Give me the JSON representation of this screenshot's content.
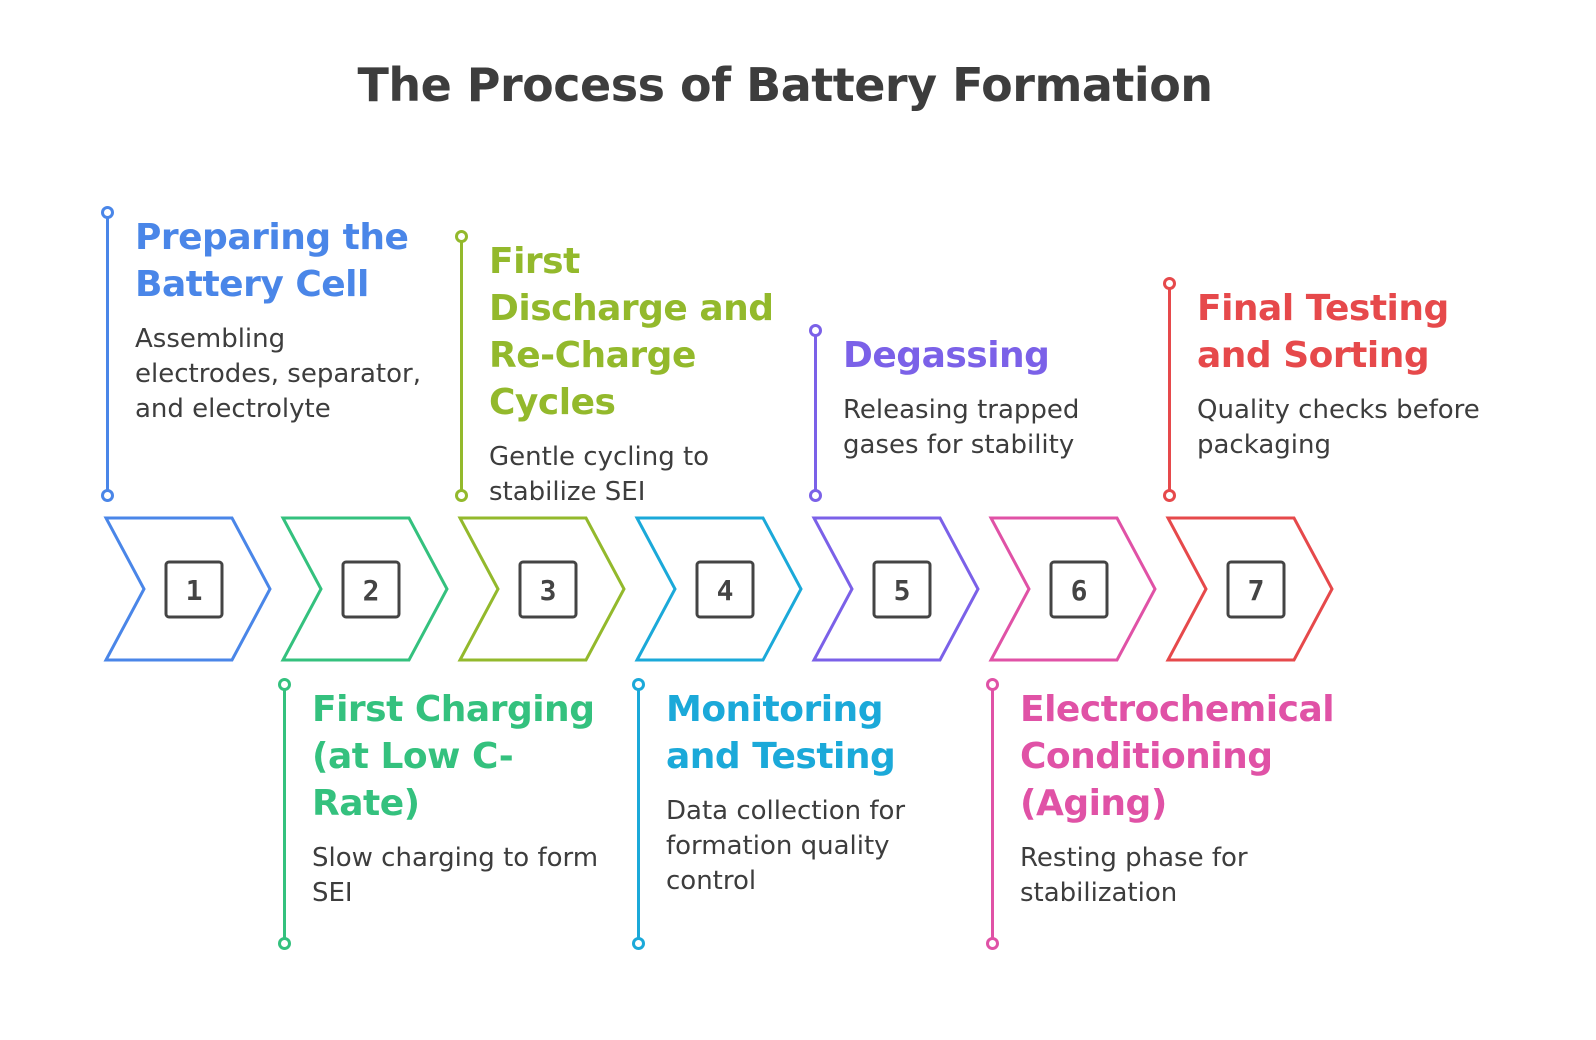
{
  "title": "The Process of Battery Formation",
  "steps": [
    {
      "number": "1",
      "title": "Preparing the Battery Cell",
      "description": "Assembling electrodes, separator, and electrolyte",
      "color": "#4a86e8",
      "position": "top"
    },
    {
      "number": "2",
      "title": "First Charging (at Low C-Rate)",
      "description": "Slow charging to form SEI",
      "color": "#34c17e",
      "position": "bottom"
    },
    {
      "number": "3",
      "title": "First Discharge and Re-Charge Cycles",
      "description": "Gentle cycling to stabilize SEI",
      "color": "#93b92c",
      "position": "top"
    },
    {
      "number": "4",
      "title": "Monitoring and Testing",
      "description": "Data collection for formation quality control",
      "color": "#1ba9d9",
      "position": "bottom"
    },
    {
      "number": "5",
      "title": "Degassing",
      "description": "Releasing trapped gases for stability",
      "color": "#7b61e8",
      "position": "top"
    },
    {
      "number": "6",
      "title": "Electrochemical Conditioning (Aging)",
      "description": "Resting phase for stabilization",
      "color": "#e052a6",
      "position": "bottom"
    },
    {
      "number": "7",
      "title": "Final Testing and Sorting",
      "description": "Quality checks before packaging",
      "color": "#e6494b",
      "position": "top"
    }
  ]
}
